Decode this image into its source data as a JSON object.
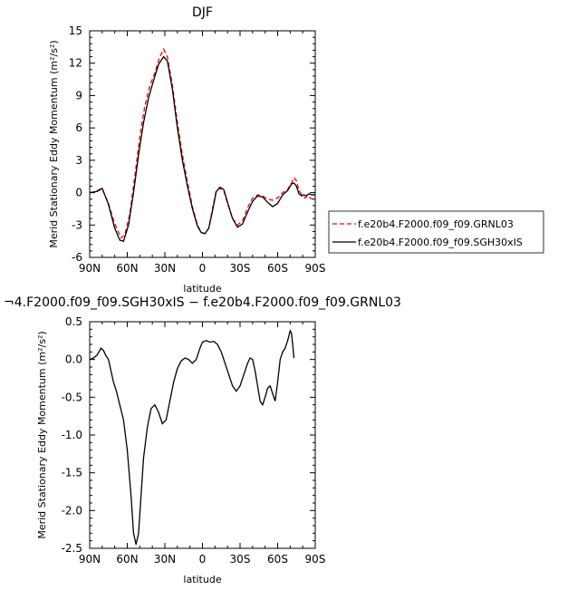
{
  "chart_data": [
    {
      "type": "line",
      "title": "DJF",
      "xlabel": "latitude",
      "ylabel": "Merid Stationary Eddy Momentum (m²/s²)",
      "xlim": [
        90,
        -90
      ],
      "ylim": [
        -6,
        15
      ],
      "x_tick_values": [
        90,
        60,
        30,
        0,
        -30,
        -60,
        -90
      ],
      "x_tick_labels": [
        "90N",
        "60N",
        "30N",
        "0",
        "30S",
        "60S",
        "90S"
      ],
      "y_tick_values": [
        -6,
        -3,
        0,
        3,
        6,
        9,
        12,
        15
      ],
      "y_tick_labels": [
        "-6",
        "-3",
        "0",
        "3",
        "6",
        "9",
        "12",
        "15"
      ],
      "series": [
        {
          "name": "f.e20b4.F2000.f09_f09.GRNL03",
          "color": "#ff0000",
          "dash": "dashed",
          "points": [
            [
              90,
              0.0
            ],
            [
              85,
              0.05
            ],
            [
              80,
              0.35
            ],
            [
              75,
              -1.0
            ],
            [
              70,
              -2.9
            ],
            [
              65,
              -4.2
            ],
            [
              62,
              -3.9
            ],
            [
              58,
              -2.0
            ],
            [
              54,
              1.5
            ],
            [
              50,
              5.2
            ],
            [
              46,
              8.0
            ],
            [
              42,
              9.9
            ],
            [
              38,
              11.1
            ],
            [
              34,
              12.6
            ],
            [
              31,
              13.3
            ],
            [
              28,
              12.6
            ],
            [
              24,
              10.0
            ],
            [
              20,
              6.5
            ],
            [
              16,
              3.5
            ],
            [
              12,
              1.0
            ],
            [
              8,
              -1.3
            ],
            [
              4,
              -3.0
            ],
            [
              1,
              -3.7
            ],
            [
              -2,
              -3.8
            ],
            [
              -5,
              -3.3
            ],
            [
              -8,
              -1.5
            ],
            [
              -11,
              0.2
            ],
            [
              -14,
              0.4
            ],
            [
              -17,
              0.2
            ],
            [
              -20,
              -1.0
            ],
            [
              -24,
              -2.4
            ],
            [
              -28,
              -3.0
            ],
            [
              -32,
              -2.6
            ],
            [
              -36,
              -1.4
            ],
            [
              -40,
              -0.5
            ],
            [
              -44,
              -0.2
            ],
            [
              -48,
              -0.3
            ],
            [
              -52,
              -0.6
            ],
            [
              -56,
              -0.7
            ],
            [
              -60,
              -0.5
            ],
            [
              -64,
              0.0
            ],
            [
              -68,
              0.3
            ],
            [
              -71,
              0.9
            ],
            [
              -73,
              1.4
            ],
            [
              -75,
              1.1
            ],
            [
              -77,
              0.2
            ],
            [
              -80,
              -0.3
            ],
            [
              -82,
              -0.5
            ],
            [
              -84,
              -0.3
            ],
            [
              -86,
              -0.5
            ],
            [
              -88,
              -0.6
            ],
            [
              -90,
              -0.5
            ]
          ]
        },
        {
          "name": "f.e20b4.F2000.f09_f09.SGH30xIS",
          "color": "#000000",
          "dash": "solid",
          "points": [
            [
              90,
              0.0
            ],
            [
              85,
              0.1
            ],
            [
              80,
              0.4
            ],
            [
              75,
              -1.1
            ],
            [
              70,
              -3.3
            ],
            [
              66,
              -4.4
            ],
            [
              63,
              -4.5
            ],
            [
              59,
              -3.0
            ],
            [
              55,
              0.0
            ],
            [
              51,
              3.5
            ],
            [
              47,
              6.5
            ],
            [
              43,
              8.8
            ],
            [
              39,
              10.4
            ],
            [
              35,
              11.9
            ],
            [
              31,
              12.6
            ],
            [
              28,
              12.2
            ],
            [
              24,
              9.6
            ],
            [
              20,
              6.0
            ],
            [
              16,
              3.0
            ],
            [
              12,
              0.6
            ],
            [
              8,
              -1.5
            ],
            [
              4,
              -3.1
            ],
            [
              1,
              -3.7
            ],
            [
              -2,
              -3.8
            ],
            [
              -5,
              -3.3
            ],
            [
              -8,
              -1.7
            ],
            [
              -11,
              0.1
            ],
            [
              -14,
              0.5
            ],
            [
              -17,
              0.3
            ],
            [
              -20,
              -0.9
            ],
            [
              -24,
              -2.4
            ],
            [
              -28,
              -3.2
            ],
            [
              -32,
              -2.9
            ],
            [
              -36,
              -1.8
            ],
            [
              -40,
              -0.8
            ],
            [
              -44,
              -0.3
            ],
            [
              -48,
              -0.4
            ],
            [
              -52,
              -0.9
            ],
            [
              -56,
              -1.3
            ],
            [
              -60,
              -1.0
            ],
            [
              -64,
              -0.2
            ],
            [
              -68,
              0.2
            ],
            [
              -71,
              0.8
            ],
            [
              -73,
              0.9
            ],
            [
              -75,
              0.6
            ],
            [
              -77,
              -0.1
            ],
            [
              -79,
              -0.3
            ],
            [
              -81,
              -0.2
            ],
            [
              -83,
              -0.3
            ],
            [
              -85,
              -0.1
            ],
            [
              -87,
              -0.2
            ],
            [
              -90,
              -0.2
            ]
          ]
        }
      ],
      "legend_placement": "right"
    },
    {
      "type": "line",
      "title": "¬4.F2000.f09_f09.SGH30xIS − f.e20b4.F2000.f09_f09.GRNL03",
      "xlabel": "latitude",
      "ylabel": "Merid Stationary Eddy Momentum (m²/s²)",
      "xlim": [
        90,
        -90
      ],
      "ylim": [
        -2.5,
        0.5
      ],
      "x_tick_values": [
        90,
        60,
        30,
        0,
        -30,
        -60,
        -90
      ],
      "x_tick_labels": [
        "90N",
        "60N",
        "30N",
        "0",
        "30S",
        "60S",
        "90S"
      ],
      "y_tick_values": [
        -2.5,
        -2.0,
        -1.5,
        -1.0,
        -0.5,
        0.0,
        0.5
      ],
      "y_tick_labels": [
        "-2.5",
        "-2.0",
        "-1.5",
        "-1.0",
        "-0.5",
        "0.0",
        "0.5"
      ],
      "series": [
        {
          "color": "#000000",
          "dash": "solid",
          "points": [
            [
              90,
              0.0
            ],
            [
              87,
              0.02
            ],
            [
              84,
              0.06
            ],
            [
              81,
              0.15
            ],
            [
              79,
              0.12
            ],
            [
              77,
              0.05
            ],
            [
              75,
              0.0
            ],
            [
              73,
              -0.15
            ],
            [
              71,
              -0.3
            ],
            [
              69,
              -0.4
            ],
            [
              66,
              -0.6
            ],
            [
              63,
              -0.8
            ],
            [
              60,
              -1.2
            ],
            [
              57,
              -1.8
            ],
            [
              55,
              -2.3
            ],
            [
              53,
              -2.45
            ],
            [
              51,
              -2.3
            ],
            [
              49,
              -1.8
            ],
            [
              47,
              -1.3
            ],
            [
              44,
              -0.9
            ],
            [
              41,
              -0.65
            ],
            [
              38,
              -0.6
            ],
            [
              35,
              -0.7
            ],
            [
              32,
              -0.85
            ],
            [
              29,
              -0.8
            ],
            [
              26,
              -0.55
            ],
            [
              23,
              -0.3
            ],
            [
              20,
              -0.12
            ],
            [
              17,
              -0.02
            ],
            [
              14,
              0.02
            ],
            [
              11,
              0.0
            ],
            [
              8,
              -0.05
            ],
            [
              5,
              0.0
            ],
            [
              2,
              0.15
            ],
            [
              0,
              0.23
            ],
            [
              -3,
              0.25
            ],
            [
              -6,
              0.23
            ],
            [
              -9,
              0.24
            ],
            [
              -12,
              0.2
            ],
            [
              -15,
              0.1
            ],
            [
              -18,
              -0.05
            ],
            [
              -21,
              -0.2
            ],
            [
              -24,
              -0.35
            ],
            [
              -27,
              -0.42
            ],
            [
              -30,
              -0.35
            ],
            [
              -33,
              -0.2
            ],
            [
              -36,
              -0.05
            ],
            [
              -38,
              0.02
            ],
            [
              -40,
              0.0
            ],
            [
              -42,
              -0.15
            ],
            [
              -44,
              -0.35
            ],
            [
              -46,
              -0.55
            ],
            [
              -48,
              -0.6
            ],
            [
              -50,
              -0.5
            ],
            [
              -52,
              -0.38
            ],
            [
              -54,
              -0.35
            ],
            [
              -56,
              -0.45
            ],
            [
              -58,
              -0.55
            ],
            [
              -60,
              -0.3
            ],
            [
              -62,
              0.0
            ],
            [
              -64,
              0.1
            ],
            [
              -66,
              0.15
            ],
            [
              -68,
              0.25
            ],
            [
              -70,
              0.38
            ],
            [
              -71,
              0.35
            ],
            [
              -72,
              0.2
            ],
            [
              -73,
              0.02
            ]
          ]
        }
      ]
    }
  ]
}
